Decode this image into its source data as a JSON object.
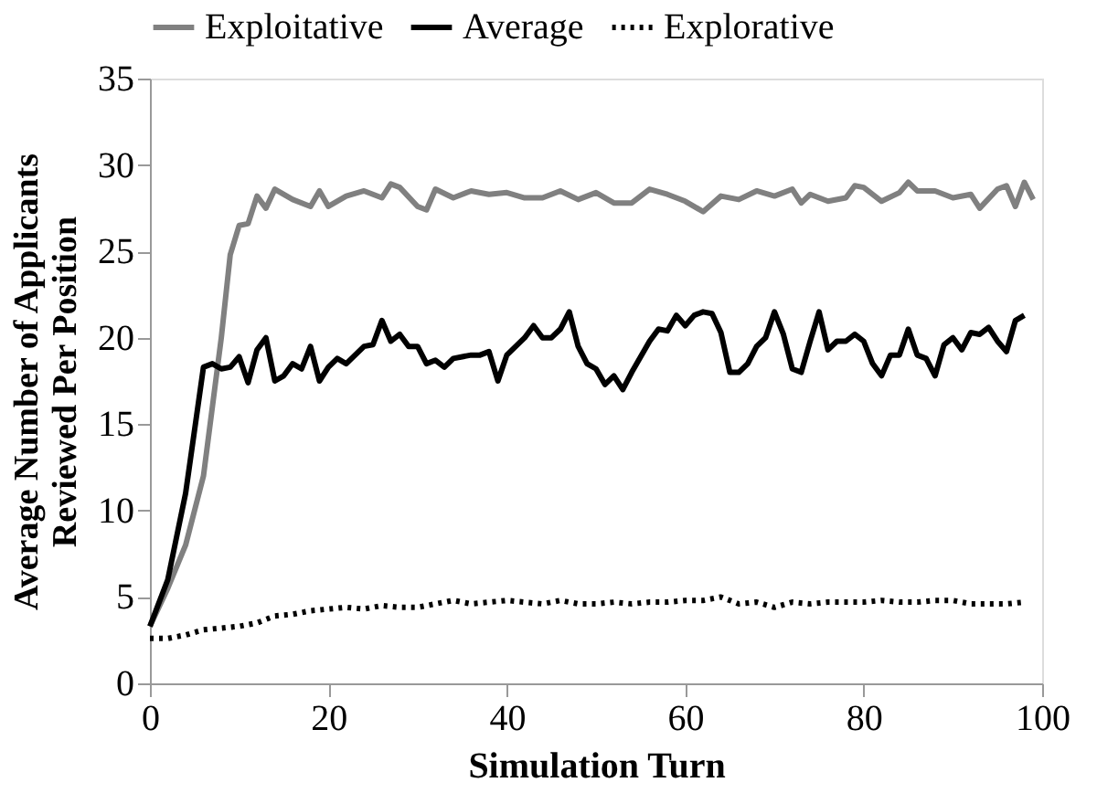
{
  "chart_data": {
    "type": "line",
    "xlabel": "Simulation Turn",
    "ylabel": "Average Number of Applicants Reviewed Per Position",
    "xlim": [
      0,
      100
    ],
    "xticks": [
      0,
      20,
      40,
      60,
      80,
      100
    ],
    "ylim": [
      0,
      35
    ],
    "yticks": [
      0,
      5,
      10,
      15,
      20,
      25,
      30,
      35
    ],
    "grid": false,
    "legend": "top",
    "marker": "none",
    "series": [
      {
        "name": "Exploitative",
        "color": "#808080",
        "line_style": "solid",
        "x": [
          0,
          2,
          4,
          6,
          8,
          9,
          10,
          11,
          12,
          13,
          14,
          16,
          18,
          19,
          20,
          22,
          24,
          26,
          27,
          28,
          30,
          31,
          32,
          34,
          36,
          38,
          40,
          42,
          44,
          46,
          48,
          50,
          52,
          54,
          56,
          58,
          60,
          62,
          64,
          66,
          68,
          70,
          72,
          73,
          74,
          76,
          78,
          79,
          80,
          82,
          84,
          85,
          86,
          88,
          90,
          92,
          93,
          95,
          96,
          97,
          98,
          99
        ],
        "values": [
          3.3,
          5.5,
          8,
          12,
          20,
          24.8,
          26.5,
          26.6,
          28.2,
          27.5,
          28.6,
          28,
          27.6,
          28.5,
          27.6,
          28.2,
          28.5,
          28.1,
          28.9,
          28.7,
          27.6,
          27.4,
          28.6,
          28.1,
          28.5,
          28.3,
          28.4,
          28.1,
          28.1,
          28.5,
          28,
          28.4,
          27.8,
          27.8,
          28.6,
          28.3,
          27.9,
          27.3,
          28.2,
          28,
          28.5,
          28.2,
          28.6,
          27.8,
          28.3,
          27.9,
          28.1,
          28.8,
          28.7,
          27.9,
          28.4,
          29,
          28.5,
          28.5,
          28.1,
          28.3,
          27.5,
          28.6,
          28.8,
          27.6,
          29,
          28
        ]
      },
      {
        "name": "Average",
        "color": "#000000",
        "line_style": "solid",
        "x": [
          0,
          2,
          4,
          6,
          7,
          8,
          9,
          10,
          11,
          12,
          13,
          14,
          15,
          16,
          17,
          18,
          19,
          20,
          21,
          22,
          24,
          25,
          26,
          27,
          28,
          29,
          30,
          31,
          32,
          33,
          34,
          35,
          36,
          37,
          38,
          39,
          40,
          42,
          43,
          44,
          45,
          46,
          47,
          48,
          49,
          50,
          51,
          52,
          53,
          54,
          56,
          57,
          58,
          59,
          60,
          61,
          62,
          63,
          64,
          65,
          66,
          67,
          68,
          69,
          70,
          71,
          72,
          73,
          74,
          75,
          76,
          77,
          78,
          79,
          80,
          81,
          82,
          83,
          84,
          85,
          86,
          87,
          88,
          89,
          90,
          91,
          92,
          93,
          94,
          95,
          96,
          97,
          98
        ],
        "values": [
          3.3,
          6,
          11,
          18.3,
          18.5,
          18.2,
          18.3,
          18.9,
          17.4,
          19.3,
          20,
          17.5,
          17.8,
          18.5,
          18.2,
          19.5,
          17.5,
          18.3,
          18.8,
          18.5,
          19.5,
          19.6,
          21,
          19.8,
          20.2,
          19.5,
          19.5,
          18.5,
          18.7,
          18.3,
          18.8,
          18.9,
          19,
          19,
          19.2,
          17.5,
          19,
          20,
          20.7,
          20,
          20,
          20.5,
          21.5,
          19.5,
          18.5,
          18.2,
          17.3,
          17.8,
          17,
          18,
          19.8,
          20.5,
          20.4,
          21.3,
          20.7,
          21.3,
          21.5,
          21.4,
          20.3,
          18,
          18,
          18.5,
          19.5,
          20,
          21.5,
          20.2,
          18.2,
          18,
          19.8,
          21.5,
          19.3,
          19.8,
          19.8,
          20.2,
          19.8,
          18.5,
          17.8,
          19,
          19,
          20.5,
          19,
          18.8,
          17.8,
          19.6,
          20,
          19.3,
          20.3,
          20.2,
          20.6,
          19.8,
          19.2,
          21,
          21.3
        ]
      },
      {
        "name": "Explorative",
        "color": "#000000",
        "line_style": "dotted",
        "x": [
          0,
          2,
          4,
          6,
          8,
          10,
          12,
          14,
          16,
          18,
          20,
          22,
          24,
          26,
          28,
          30,
          32,
          34,
          36,
          38,
          40,
          42,
          44,
          46,
          48,
          50,
          52,
          54,
          56,
          58,
          60,
          62,
          64,
          66,
          68,
          70,
          72,
          74,
          76,
          78,
          80,
          82,
          84,
          86,
          88,
          90,
          92,
          94,
          96,
          98
        ],
        "values": [
          2.6,
          2.6,
          2.8,
          3.1,
          3.2,
          3.3,
          3.5,
          3.9,
          4,
          4.2,
          4.3,
          4.4,
          4.3,
          4.5,
          4.4,
          4.4,
          4.6,
          4.8,
          4.6,
          4.7,
          4.8,
          4.7,
          4.6,
          4.8,
          4.6,
          4.6,
          4.7,
          4.6,
          4.7,
          4.7,
          4.8,
          4.8,
          5,
          4.6,
          4.7,
          4.4,
          4.7,
          4.6,
          4.7,
          4.7,
          4.7,
          4.8,
          4.7,
          4.7,
          4.8,
          4.8,
          4.6,
          4.6,
          4.6,
          4.7
        ]
      }
    ]
  }
}
